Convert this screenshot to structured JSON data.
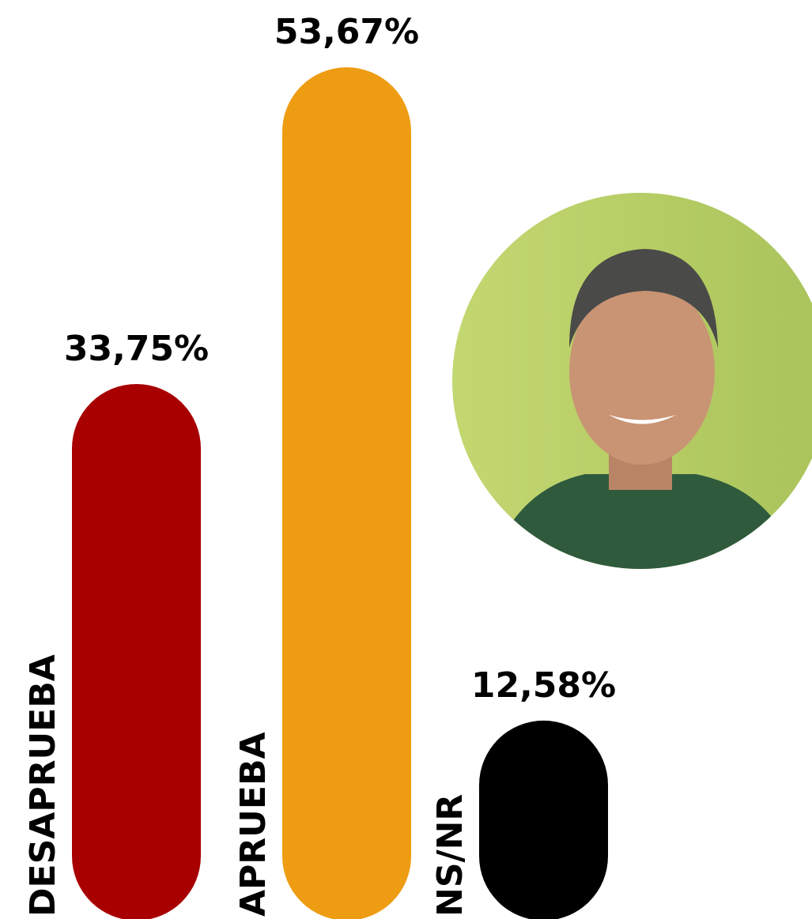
{
  "chart_data": {
    "type": "bar",
    "categories": [
      "DESAPRUEBA",
      "APRUEBA",
      "NS/NR"
    ],
    "values": [
      33.75,
      53.67,
      12.58
    ],
    "value_labels": [
      "33,75%",
      "53,67%",
      "12,58%"
    ],
    "colors": [
      "#a80000",
      "#ee9c12",
      "#000000"
    ]
  }
}
